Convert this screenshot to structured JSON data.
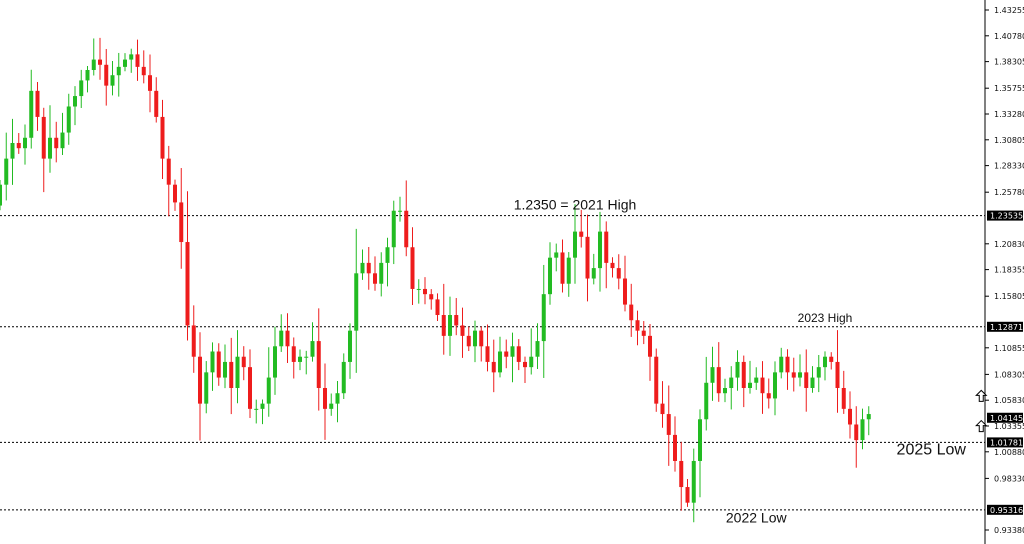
{
  "chart_data": {
    "type": "candlestick",
    "ylim": [
      0.9338,
      1.43255
    ],
    "y_ticks": [
      "1.43255",
      "1.40780",
      "1.38305",
      "1.35755",
      "1.33280",
      "1.30805",
      "1.28330",
      "1.25780",
      "1.20830",
      "1.18355",
      "1.15805",
      "1.10855",
      "1.08305",
      "1.05830",
      "1.03355",
      "1.00880",
      "0.98330",
      "0.93380"
    ],
    "levels": [
      {
        "value": 1.23535,
        "label": "1.23535"
      },
      {
        "value": 1.12871,
        "label": "1.12871"
      },
      {
        "value": 1.01781,
        "label": "1.01781"
      },
      {
        "value": 0.95316,
        "label": "0.95316"
      }
    ],
    "current_price": {
      "value": 1.04145,
      "label": "1.04145"
    },
    "annotations": [
      {
        "text": "1.2350 = 2021 High",
        "price": 1.241,
        "candle": 92,
        "size": 14
      },
      {
        "text": "2023 High",
        "price": 1.1335,
        "candle": 132,
        "size": 12
      },
      {
        "text": "2022 Low",
        "price": 0.941,
        "candle": 121,
        "size": 14
      },
      {
        "text": "2025 Low",
        "price": 1.006,
        "candle": 149,
        "size": 16
      }
    ],
    "arrows": [
      {
        "price": 1.062,
        "candle": 157
      },
      {
        "price": 1.033,
        "candle": 157
      }
    ],
    "colors": {
      "up": "#22bb22",
      "down": "#ee1c1c",
      "level": "#000000",
      "tag_bg": "#000000",
      "tag_text": "#ffffff"
    },
    "closes": [
      1.265,
      1.29,
      1.305,
      1.3,
      1.31,
      1.355,
      1.33,
      1.29,
      1.31,
      1.3,
      1.315,
      1.34,
      1.35,
      1.365,
      1.375,
      1.385,
      1.38,
      1.36,
      1.37,
      1.378,
      1.385,
      1.39,
      1.378,
      1.37,
      1.355,
      1.33,
      1.29,
      1.265,
      1.248,
      1.21,
      1.13,
      1.1,
      1.055,
      1.085,
      1.105,
      1.08,
      1.095,
      1.07,
      1.1,
      1.09,
      1.05,
      1.05,
      1.055,
      1.08,
      1.11,
      1.125,
      1.11,
      1.095,
      1.1,
      1.1,
      1.115,
      1.07,
      1.05,
      1.055,
      1.065,
      1.095,
      1.125,
      1.18,
      1.19,
      1.18,
      1.17,
      1.19,
      1.205,
      1.24,
      1.24,
      1.205,
      1.165,
      1.165,
      1.16,
      1.155,
      1.14,
      1.12,
      1.14,
      1.13,
      1.12,
      1.11,
      1.125,
      1.11,
      1.095,
      1.085,
      1.105,
      1.1,
      1.11,
      1.095,
      1.09,
      1.1,
      1.115,
      1.16,
      1.195,
      1.2,
      1.17,
      1.195,
      1.22,
      1.215,
      1.175,
      1.185,
      1.22,
      1.19,
      1.185,
      1.175,
      1.15,
      1.135,
      1.125,
      1.12,
      1.1,
      1.055,
      1.045,
      1.025,
      1.0,
      0.975,
      0.96,
      1.0,
      1.04,
      1.075,
      1.09,
      1.065,
      1.07,
      1.08,
      1.095,
      1.07,
      1.075,
      1.08,
      1.065,
      1.06,
      1.085,
      1.1,
      1.085,
      1.08,
      1.085,
      1.07,
      1.08,
      1.09,
      1.1,
      1.095,
      1.07,
      1.05,
      1.035,
      1.02,
      1.04,
      1.045
    ]
  }
}
